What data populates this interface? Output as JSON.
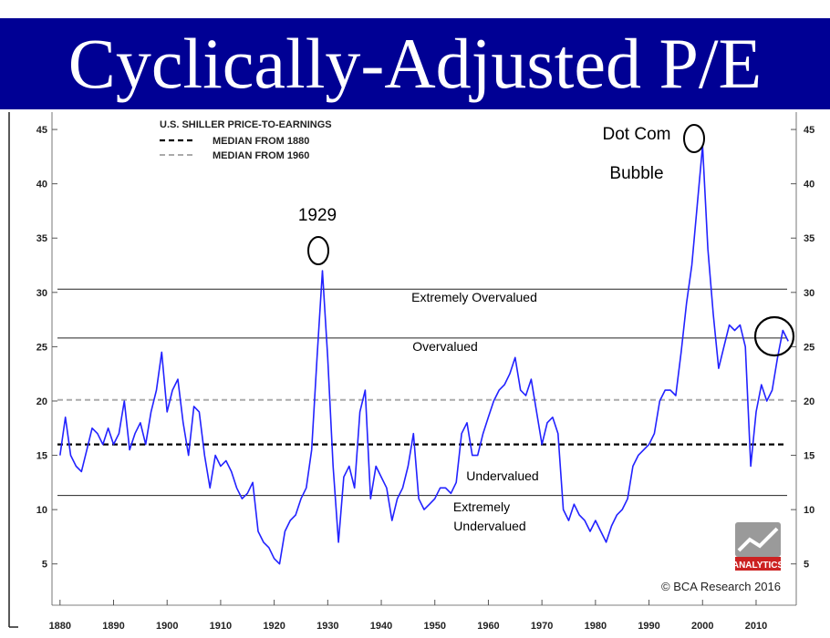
{
  "header": {
    "title": "Cyclically-Adjusted P/E"
  },
  "colors": {
    "title_bg": "#000094",
    "series": "#2222ff",
    "median_1880": "#000000",
    "median_1960": "#aaaaaa",
    "logo_red": "#cc2222"
  },
  "legend": {
    "title": "U.S. SHILLER PRICE-TO-EARNINGS",
    "items": [
      "MEDIAN FROM 1880",
      "MEDIAN FROM 1960"
    ]
  },
  "zones": {
    "extremely_overvalued": "Extremely Overvalued",
    "overvalued": "Overvalued",
    "undervalued": "Undervalued",
    "extremely_undervalued_1": "Extremely",
    "extremely_undervalued_2": "Undervalued"
  },
  "annotations": {
    "a1929": "1929",
    "dotcom_1": "Dot Com",
    "dotcom_2": "Bubble"
  },
  "logo": {
    "text": "ANALYTICS",
    "icon": "chart-logo-icon"
  },
  "copyright": "© BCA Research 2016",
  "chart_data": {
    "type": "line",
    "title": "U.S. SHILLER PRICE-TO-EARNINGS",
    "xlim": [
      1878.5,
      2017.5
    ],
    "ylim": [
      1.2,
      46.6
    ],
    "x_ticks": [
      "1880",
      "1890",
      "1900",
      "1910",
      "1920",
      "1930",
      "1940",
      "1950",
      "1960",
      "1970",
      "1980",
      "1990",
      "2000",
      "2010"
    ],
    "y_ticks": [
      "5",
      "10",
      "15",
      "20",
      "25",
      "30",
      "35",
      "40",
      "45"
    ],
    "reference_lines": {
      "median_1880": 16.0,
      "median_1960": 20.1,
      "extremely_overvalued": 30.3,
      "overvalued": 25.8,
      "extremely_undervalued": 11.3
    },
    "series": [
      {
        "x": [
          1880,
          1881,
          1882,
          1883,
          1884,
          1885,
          1886,
          1887,
          1888,
          1889,
          1890,
          1891,
          1892,
          1893,
          1894,
          1895,
          1896,
          1897,
          1898,
          1899,
          1900,
          1901,
          1902,
          1903,
          1904,
          1905,
          1906,
          1907,
          1908,
          1909,
          1910,
          1911,
          1912,
          1913,
          1914,
          1915,
          1916,
          1917,
          1918,
          1919,
          1920,
          1921,
          1922,
          1923,
          1924,
          1925,
          1926,
          1927,
          1928,
          1929,
          1930,
          1931,
          1932,
          1933,
          1934,
          1935,
          1936,
          1937,
          1938,
          1939,
          1940,
          1941,
          1942,
          1943,
          1944,
          1945,
          1946,
          1947,
          1948,
          1949,
          1950,
          1951,
          1952,
          1953,
          1954,
          1955,
          1956,
          1957,
          1958,
          1959,
          1960,
          1961,
          1962,
          1963,
          1964,
          1965,
          1966,
          1967,
          1968,
          1969,
          1970,
          1971,
          1972,
          1973,
          1974,
          1975,
          1976,
          1977,
          1978,
          1979,
          1980,
          1981,
          1982,
          1983,
          1984,
          1985,
          1986,
          1987,
          1988,
          1989,
          1990,
          1991,
          1992,
          1993,
          1994,
          1995,
          1996,
          1997,
          1998,
          1999,
          2000,
          2001,
          2002,
          2003,
          2004,
          2005,
          2006,
          2007,
          2008,
          2009,
          2010,
          2011,
          2012,
          2013,
          2014,
          2015,
          2016
        ],
        "values": [
          15,
          18.5,
          15,
          14,
          13.5,
          15.5,
          17.5,
          17,
          16,
          17.5,
          16,
          17,
          20,
          15.5,
          17,
          18,
          16,
          19,
          21,
          24.5,
          19,
          21,
          22,
          18,
          15,
          19.5,
          19,
          15,
          12,
          15,
          14,
          14.5,
          13.5,
          12,
          11,
          11.5,
          12.5,
          8,
          7,
          6.5,
          5.5,
          5,
          8,
          9,
          9.5,
          11,
          12,
          15.5,
          24,
          32,
          24,
          14,
          7,
          13,
          14,
          12,
          19,
          21,
          11,
          14,
          13,
          12,
          9,
          11,
          12,
          14,
          17,
          11,
          10,
          10.5,
          11,
          12,
          12,
          11.5,
          12.5,
          17,
          18,
          15,
          15,
          17,
          18.5,
          20,
          21,
          21.5,
          22.5,
          24,
          21,
          20.5,
          22,
          19,
          16,
          18,
          18.5,
          17,
          10,
          9,
          10.5,
          9.5,
          9,
          8,
          9,
          8,
          7,
          8.5,
          9.5,
          10,
          11,
          14,
          15,
          15.5,
          16,
          17,
          20,
          21,
          21,
          20.5,
          24.5,
          29,
          32.5,
          38,
          43.5,
          34,
          28,
          23,
          25,
          27,
          26.5,
          27,
          25,
          14,
          19,
          21.5,
          20,
          21,
          24,
          26.5,
          25.5
        ]
      }
    ],
    "xlabel": "",
    "ylabel": "",
    "grid": false
  }
}
